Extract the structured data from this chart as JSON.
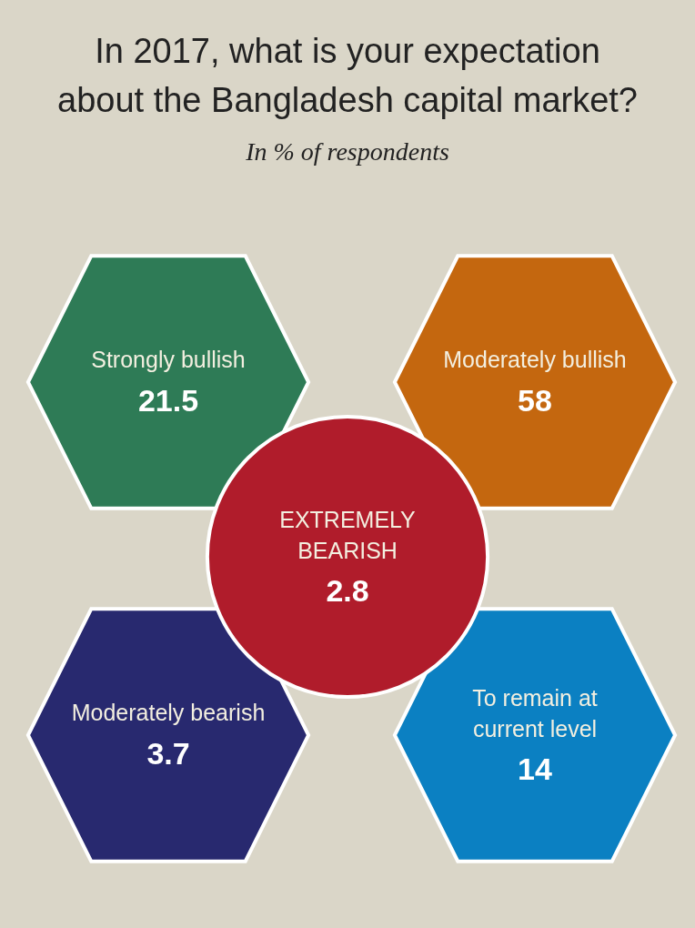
{
  "chart_data": {
    "type": "other",
    "title": "In 2017, what is your expectation about the Bangladesh capital market?",
    "subtitle": "In % of respondents",
    "categories": [
      "Strongly bullish",
      "Moderately bullish",
      "EXTREMELY BEARISH",
      "Moderately bearish",
      "To remain at current level"
    ],
    "values": [
      21.5,
      58,
      2.8,
      3.7,
      14
    ],
    "data_labels": true,
    "colors": [
      "#2e7b56",
      "#c4670f",
      "#b01c2b",
      "#28296f",
      "#0b80c2"
    ]
  }
}
